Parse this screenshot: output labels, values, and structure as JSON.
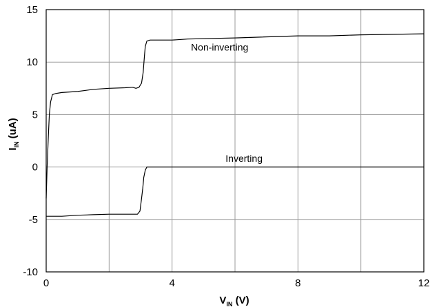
{
  "chart_data": {
    "type": "line",
    "xlabel": {
      "main": "V",
      "sub": "IN",
      "unit": " (V)"
    },
    "ylabel": {
      "main": "I",
      "sub": "IN",
      "unit": " (uA)"
    },
    "xlim": [
      0,
      12
    ],
    "ylim": [
      -10,
      15
    ],
    "xticks": [
      "0",
      "4",
      "8",
      "12"
    ],
    "yticks": [
      "15",
      "10",
      "5",
      "0",
      "-5",
      "-10"
    ],
    "xtick_values": [
      0,
      4,
      8,
      12
    ],
    "ytick_values": [
      15,
      10,
      5,
      0,
      -5,
      -10
    ],
    "grid_x": [
      2,
      4,
      6,
      8,
      10
    ],
    "grid_y": [
      -5,
      0,
      5,
      10
    ],
    "grid": true,
    "series": [
      {
        "name": "Non-inverting",
        "points": [
          [
            0,
            -3
          ],
          [
            0.03,
            0
          ],
          [
            0.07,
            3
          ],
          [
            0.1,
            5
          ],
          [
            0.14,
            6.2
          ],
          [
            0.2,
            6.9
          ],
          [
            0.3,
            7.0
          ],
          [
            0.5,
            7.1
          ],
          [
            1.0,
            7.2
          ],
          [
            1.5,
            7.4
          ],
          [
            2.0,
            7.5
          ],
          [
            2.5,
            7.55
          ],
          [
            2.75,
            7.6
          ],
          [
            2.85,
            7.5
          ],
          [
            2.95,
            7.6
          ],
          [
            3.03,
            8.0
          ],
          [
            3.08,
            9.0
          ],
          [
            3.12,
            10.5
          ],
          [
            3.15,
            11.5
          ],
          [
            3.2,
            12.0
          ],
          [
            3.3,
            12.1
          ],
          [
            4.0,
            12.1
          ],
          [
            4.5,
            12.2
          ],
          [
            6.0,
            12.3
          ],
          [
            8.0,
            12.5
          ],
          [
            9.0,
            12.5
          ],
          [
            10.0,
            12.6
          ],
          [
            12.0,
            12.7
          ]
        ]
      },
      {
        "name": "Inverting",
        "points": [
          [
            0,
            -4.7
          ],
          [
            0.5,
            -4.7
          ],
          [
            1.0,
            -4.6
          ],
          [
            1.5,
            -4.55
          ],
          [
            2.0,
            -4.5
          ],
          [
            2.5,
            -4.5
          ],
          [
            2.9,
            -4.5
          ],
          [
            2.98,
            -4.2
          ],
          [
            3.03,
            -3.0
          ],
          [
            3.07,
            -2.0
          ],
          [
            3.1,
            -1.0
          ],
          [
            3.15,
            -0.3
          ],
          [
            3.2,
            0
          ],
          [
            4.0,
            0
          ],
          [
            8.0,
            0
          ],
          [
            12.0,
            0
          ]
        ]
      }
    ],
    "annotations": [
      {
        "text": "Non-inverting",
        "x": 4.6,
        "y": 11.1
      },
      {
        "text": "Inverting",
        "x": 5.7,
        "y": 0.5
      }
    ]
  }
}
